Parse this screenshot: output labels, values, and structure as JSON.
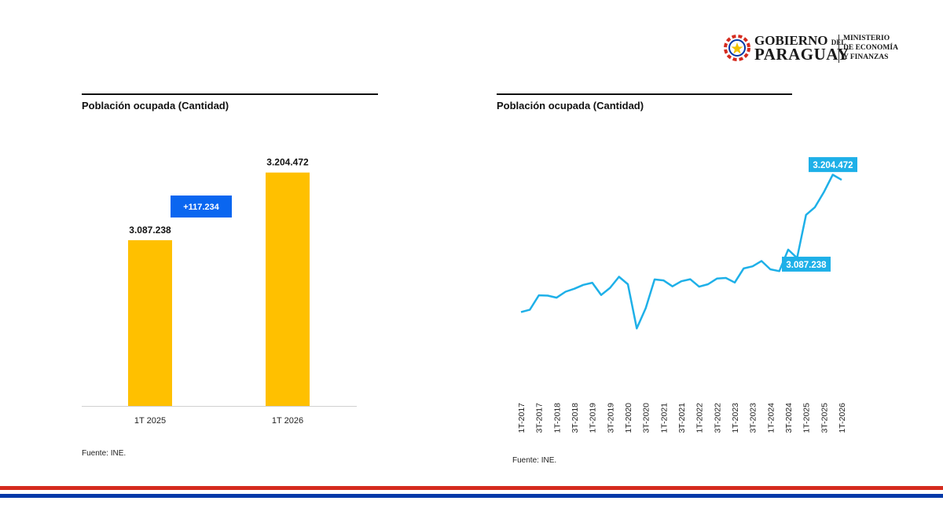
{
  "header": {
    "logo_line1": "GOBIERNO",
    "logo_del": "DEL",
    "logo_line2": "PARAGUAY",
    "ministry": [
      "MINISTERIO",
      "DE ECONOMÍA",
      "Y FINANZAS"
    ]
  },
  "left_panel": {
    "title": "Población ocupada (Cantidad)",
    "source": "Fuente: INE."
  },
  "right_panel": {
    "title": "Población ocupada (Cantidad)",
    "source": "Fuente: INE."
  },
  "colors": {
    "bar": "#FFC000",
    "line": "#1EB0E8",
    "diff_badge": "#0A66F0",
    "flag_red": "#D52B1E",
    "flag_blue": "#0038A8"
  },
  "chart_data": [
    {
      "type": "bar",
      "title": "Población ocupada (Cantidad)",
      "categories": [
        "1T 2025",
        "1T 2026"
      ],
      "values": [
        3087238,
        3204472
      ],
      "value_labels": [
        "3.087.238",
        "3.204.472"
      ],
      "difference_label": "+117.234",
      "ylim": [
        2800000,
        3215000
      ],
      "grid": false,
      "legend": "none"
    },
    {
      "type": "line",
      "title": "Población ocupada (Cantidad)",
      "x": [
        "1T-2017",
        "2T-2017",
        "3T-2017",
        "4T-2017",
        "1T-2018",
        "2T-2018",
        "3T-2018",
        "4T-2018",
        "1T-2019",
        "2T-2019",
        "3T-2019",
        "4T-2019",
        "1T-2020",
        "2T-2020",
        "3T-2020",
        "4T-2020",
        "1T-2021",
        "2T-2021",
        "3T-2021",
        "4T-2021",
        "1T-2022",
        "2T-2022",
        "3T-2022",
        "4T-2022",
        "1T-2023",
        "2T-2023",
        "3T-2023",
        "4T-2023",
        "1T-2024",
        "2T-2024",
        "3T-2024",
        "4T-2024",
        "1T-2025",
        "2T-2025",
        "3T-2025",
        "4T-2025",
        "1T-2026"
      ],
      "tick_labels": [
        "1T-2017",
        "3T-2017",
        "1T-2018",
        "3T-2018",
        "1T-2019",
        "3T-2019",
        "1T-2020",
        "3T-2020",
        "1T-2021",
        "3T-2021",
        "1T-2022",
        "3T-2022",
        "1T-2023",
        "3T-2023",
        "1T-2024",
        "3T-2024",
        "1T-2025",
        "3T-2025",
        "1T-2026"
      ],
      "values": [
        2762000,
        2770000,
        2818000,
        2817000,
        2810000,
        2830000,
        2840000,
        2853000,
        2860000,
        2819000,
        2843000,
        2880000,
        2855000,
        2707000,
        2775000,
        2871000,
        2868000,
        2848000,
        2865000,
        2872000,
        2847000,
        2855000,
        2874000,
        2876000,
        2861000,
        2908000,
        2915000,
        2933000,
        2905000,
        2899000,
        2971000,
        2943000,
        3087238,
        3113000,
        3163000,
        3222000,
        3204472
      ],
      "annotations": [
        {
          "x": "3T-2024",
          "label": "3.087.238"
        },
        {
          "x": "1T-2026",
          "label": "3.204.472"
        }
      ],
      "ylim": [
        2650000,
        3260000
      ],
      "grid": false,
      "legend": "none"
    }
  ]
}
